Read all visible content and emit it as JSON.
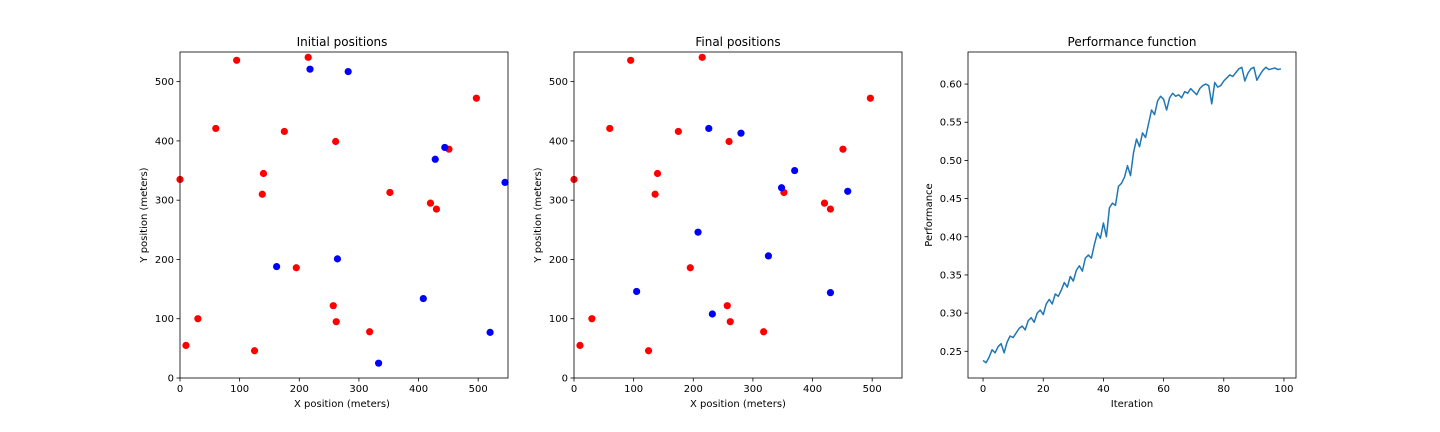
{
  "chart_data": [
    {
      "type": "scatter",
      "title": "Initial positions",
      "xlabel": "X position (meters)",
      "ylabel": "Y position (meters)",
      "xlim": [
        0,
        550
      ],
      "ylim": [
        0,
        550
      ],
      "xticks": [
        0,
        100,
        200,
        300,
        400,
        500
      ],
      "yticks": [
        0,
        100,
        200,
        300,
        400,
        500
      ],
      "grid": false,
      "series": [
        {
          "color": "#ff0000",
          "points": [
            [
              0,
              335
            ],
            [
              10,
              55
            ],
            [
              30,
              100
            ],
            [
              95,
              536
            ],
            [
              60,
              421
            ],
            [
              125,
              46
            ],
            [
              140,
              345
            ],
            [
              138,
              310
            ],
            [
              175,
              416
            ],
            [
              195,
              186
            ],
            [
              215,
              541
            ],
            [
              257,
              122
            ],
            [
              261,
              399
            ],
            [
              262,
              95
            ],
            [
              318,
              78
            ],
            [
              352,
              313
            ],
            [
              420,
              295
            ],
            [
              430,
              285
            ],
            [
              451,
              386
            ],
            [
              497,
              472
            ]
          ]
        },
        {
          "color": "#0000ff",
          "points": [
            [
              162,
              188
            ],
            [
              218,
              521
            ],
            [
              264,
              201
            ],
            [
              282,
              517
            ],
            [
              333,
              25
            ],
            [
              408,
              134
            ],
            [
              428,
              369
            ],
            [
              444,
              389
            ],
            [
              520,
              77
            ],
            [
              545,
              330
            ]
          ]
        }
      ]
    },
    {
      "type": "scatter",
      "title": "Final positions",
      "xlabel": "X position (meters)",
      "ylabel": "Y position (meters)",
      "xlim": [
        0,
        550
      ],
      "ylim": [
        0,
        550
      ],
      "xticks": [
        0,
        100,
        200,
        300,
        400,
        500
      ],
      "yticks": [
        0,
        100,
        200,
        300,
        400,
        500
      ],
      "grid": false,
      "series": [
        {
          "color": "#ff0000",
          "points": [
            [
              0,
              335
            ],
            [
              10,
              55
            ],
            [
              30,
              100
            ],
            [
              95,
              536
            ],
            [
              60,
              421
            ],
            [
              125,
              46
            ],
            [
              140,
              345
            ],
            [
              136,
              310
            ],
            [
              175,
              416
            ],
            [
              195,
              186
            ],
            [
              215,
              541
            ],
            [
              257,
              122
            ],
            [
              260,
              399
            ],
            [
              262,
              95
            ],
            [
              318,
              78
            ],
            [
              352,
              313
            ],
            [
              420,
              295
            ],
            [
              430,
              285
            ],
            [
              451,
              386
            ],
            [
              497,
              472
            ]
          ]
        },
        {
          "color": "#0000ff",
          "points": [
            [
              105,
              146
            ],
            [
              208,
              246
            ],
            [
              226,
              421
            ],
            [
              232,
              108
            ],
            [
              280,
              413
            ],
            [
              326,
              206
            ],
            [
              348,
              321
            ],
            [
              370,
              350
            ],
            [
              430,
              144
            ],
            [
              459,
              315
            ]
          ]
        }
      ]
    },
    {
      "type": "line",
      "title": "Performance function",
      "xlabel": "Iteration",
      "ylabel": "Performance",
      "xlim": [
        -5,
        104
      ],
      "ylim": [
        0.215,
        0.642
      ],
      "xticks": [
        0,
        20,
        40,
        60,
        80,
        100
      ],
      "yticks": [
        0.25,
        0.3,
        0.35,
        0.4,
        0.45,
        0.5,
        0.55,
        0.6
      ],
      "ytick_labels": [
        "0.25",
        "0.30",
        "0.35",
        "0.40",
        "0.45",
        "0.50",
        "0.55",
        "0.60"
      ],
      "grid": false,
      "series": [
        {
          "color": "#1f77b4",
          "values": [
            0.238,
            0.235,
            0.242,
            0.252,
            0.248,
            0.256,
            0.26,
            0.248,
            0.262,
            0.27,
            0.268,
            0.274,
            0.28,
            0.283,
            0.278,
            0.29,
            0.294,
            0.288,
            0.3,
            0.304,
            0.298,
            0.312,
            0.318,
            0.312,
            0.325,
            0.322,
            0.33,
            0.34,
            0.334,
            0.348,
            0.342,
            0.356,
            0.362,
            0.355,
            0.372,
            0.376,
            0.372,
            0.39,
            0.405,
            0.398,
            0.418,
            0.4,
            0.438,
            0.444,
            0.441,
            0.466,
            0.47,
            0.478,
            0.493,
            0.48,
            0.51,
            0.528,
            0.518,
            0.536,
            0.53,
            0.548,
            0.566,
            0.56,
            0.578,
            0.584,
            0.58,
            0.566,
            0.582,
            0.588,
            0.584,
            0.586,
            0.582,
            0.59,
            0.588,
            0.594,
            0.59,
            0.586,
            0.594,
            0.598,
            0.6,
            0.598,
            0.574,
            0.602,
            0.596,
            0.598,
            0.604,
            0.608,
            0.612,
            0.61,
            0.615,
            0.62,
            0.622,
            0.604,
            0.614,
            0.62,
            0.622,
            0.605,
            0.612,
            0.618,
            0.622,
            0.619,
            0.62,
            0.621,
            0.619,
            0.62
          ]
        }
      ]
    }
  ]
}
